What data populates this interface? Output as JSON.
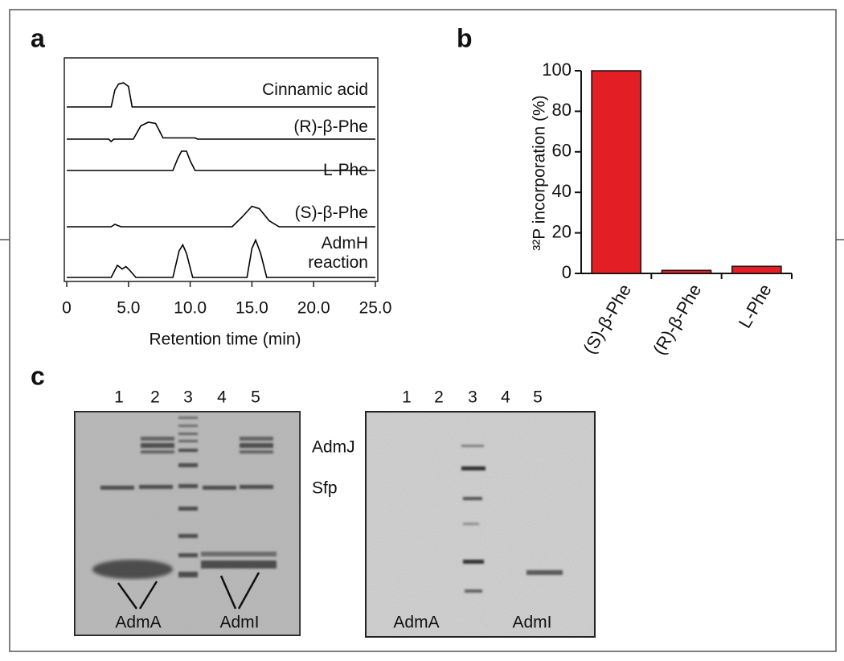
{
  "panel_labels": [
    "a",
    "b",
    "c"
  ],
  "chart_data": [
    {
      "type": "line",
      "xlabel": "Retention time (min)",
      "xlim": [
        0,
        25
      ],
      "xticks": [
        0,
        {
          "value": 5,
          "label": "5.0"
        },
        {
          "value": 10,
          "label": "10.0"
        },
        {
          "value": 15,
          "label": "15.0"
        },
        {
          "value": 20,
          "label": "20.0"
        },
        {
          "value": 25,
          "label": "25.0"
        }
      ],
      "series": [
        {
          "name": "Cinnamic acid",
          "color": "#000000",
          "x": [
            0,
            3.6,
            3.9,
            4.2,
            4.6,
            5.0,
            5.3,
            25
          ],
          "values": [
            0,
            0,
            0.7,
            0.95,
            1.0,
            0.85,
            0,
            0
          ]
        },
        {
          "name": "(R)-β-Phe",
          "color": "#000000",
          "x": [
            0,
            3.4,
            3.6,
            3.8,
            5.4,
            6.0,
            6.6,
            7.2,
            7.8,
            10.4,
            10.6,
            25
          ],
          "values": [
            0,
            0,
            -0.1,
            0,
            0,
            0.55,
            0.7,
            0.65,
            0.05,
            0.05,
            0,
            0
          ]
        },
        {
          "name": "L-Phe",
          "color": "#000000",
          "x": [
            0,
            8.6,
            9.0,
            9.3,
            9.7,
            10.0,
            10.4,
            25
          ],
          "values": [
            0,
            0,
            0.5,
            0.8,
            0.8,
            0.4,
            0,
            0
          ]
        },
        {
          "name": "(S)-β-Phe",
          "color": "#000000",
          "x": [
            0,
            3.6,
            3.9,
            4.4,
            13.4,
            14.2,
            15.0,
            15.6,
            16.4,
            17.2,
            25
          ],
          "values": [
            0,
            0,
            0.1,
            0,
            0,
            0.4,
            0.85,
            0.75,
            0.25,
            0,
            0
          ]
        },
        {
          "name": "AdmH reaction",
          "color": "#000000",
          "x": [
            0,
            3.6,
            4.1,
            4.5,
            4.8,
            5.1,
            5.6,
            8.6,
            9.1,
            9.4,
            9.7,
            10.2,
            14.6,
            15.0,
            15.3,
            15.7,
            16.2,
            25
          ],
          "values": [
            0,
            0,
            0.5,
            0.35,
            0.45,
            0.3,
            0,
            0,
            1.1,
            1.35,
            1.0,
            0,
            0,
            1.2,
            1.55,
            1.0,
            0,
            0
          ]
        }
      ]
    },
    {
      "type": "bar",
      "ylabel": "³²P incorporation (%)",
      "categories": [
        "(S)-β-Phe",
        "(R)-β-Phe",
        "L-Phe"
      ],
      "values": [
        100,
        1.5,
        3.5
      ],
      "color": "#e31e24",
      "ylim": [
        0,
        100
      ],
      "yticks": [
        0,
        20,
        40,
        60,
        80,
        100
      ]
    }
  ],
  "gels": [
    {
      "lanes": [
        "1",
        "2",
        "3",
        "4",
        "5"
      ],
      "band_labels": [
        "AdmA",
        "AdmI"
      ],
      "marker_labels": [
        "AdmJ",
        "Sfp"
      ]
    },
    {
      "lanes": [
        "1",
        "2",
        "3",
        "4",
        "5"
      ],
      "band_labels": [
        "AdmA",
        "AdmI"
      ]
    }
  ]
}
